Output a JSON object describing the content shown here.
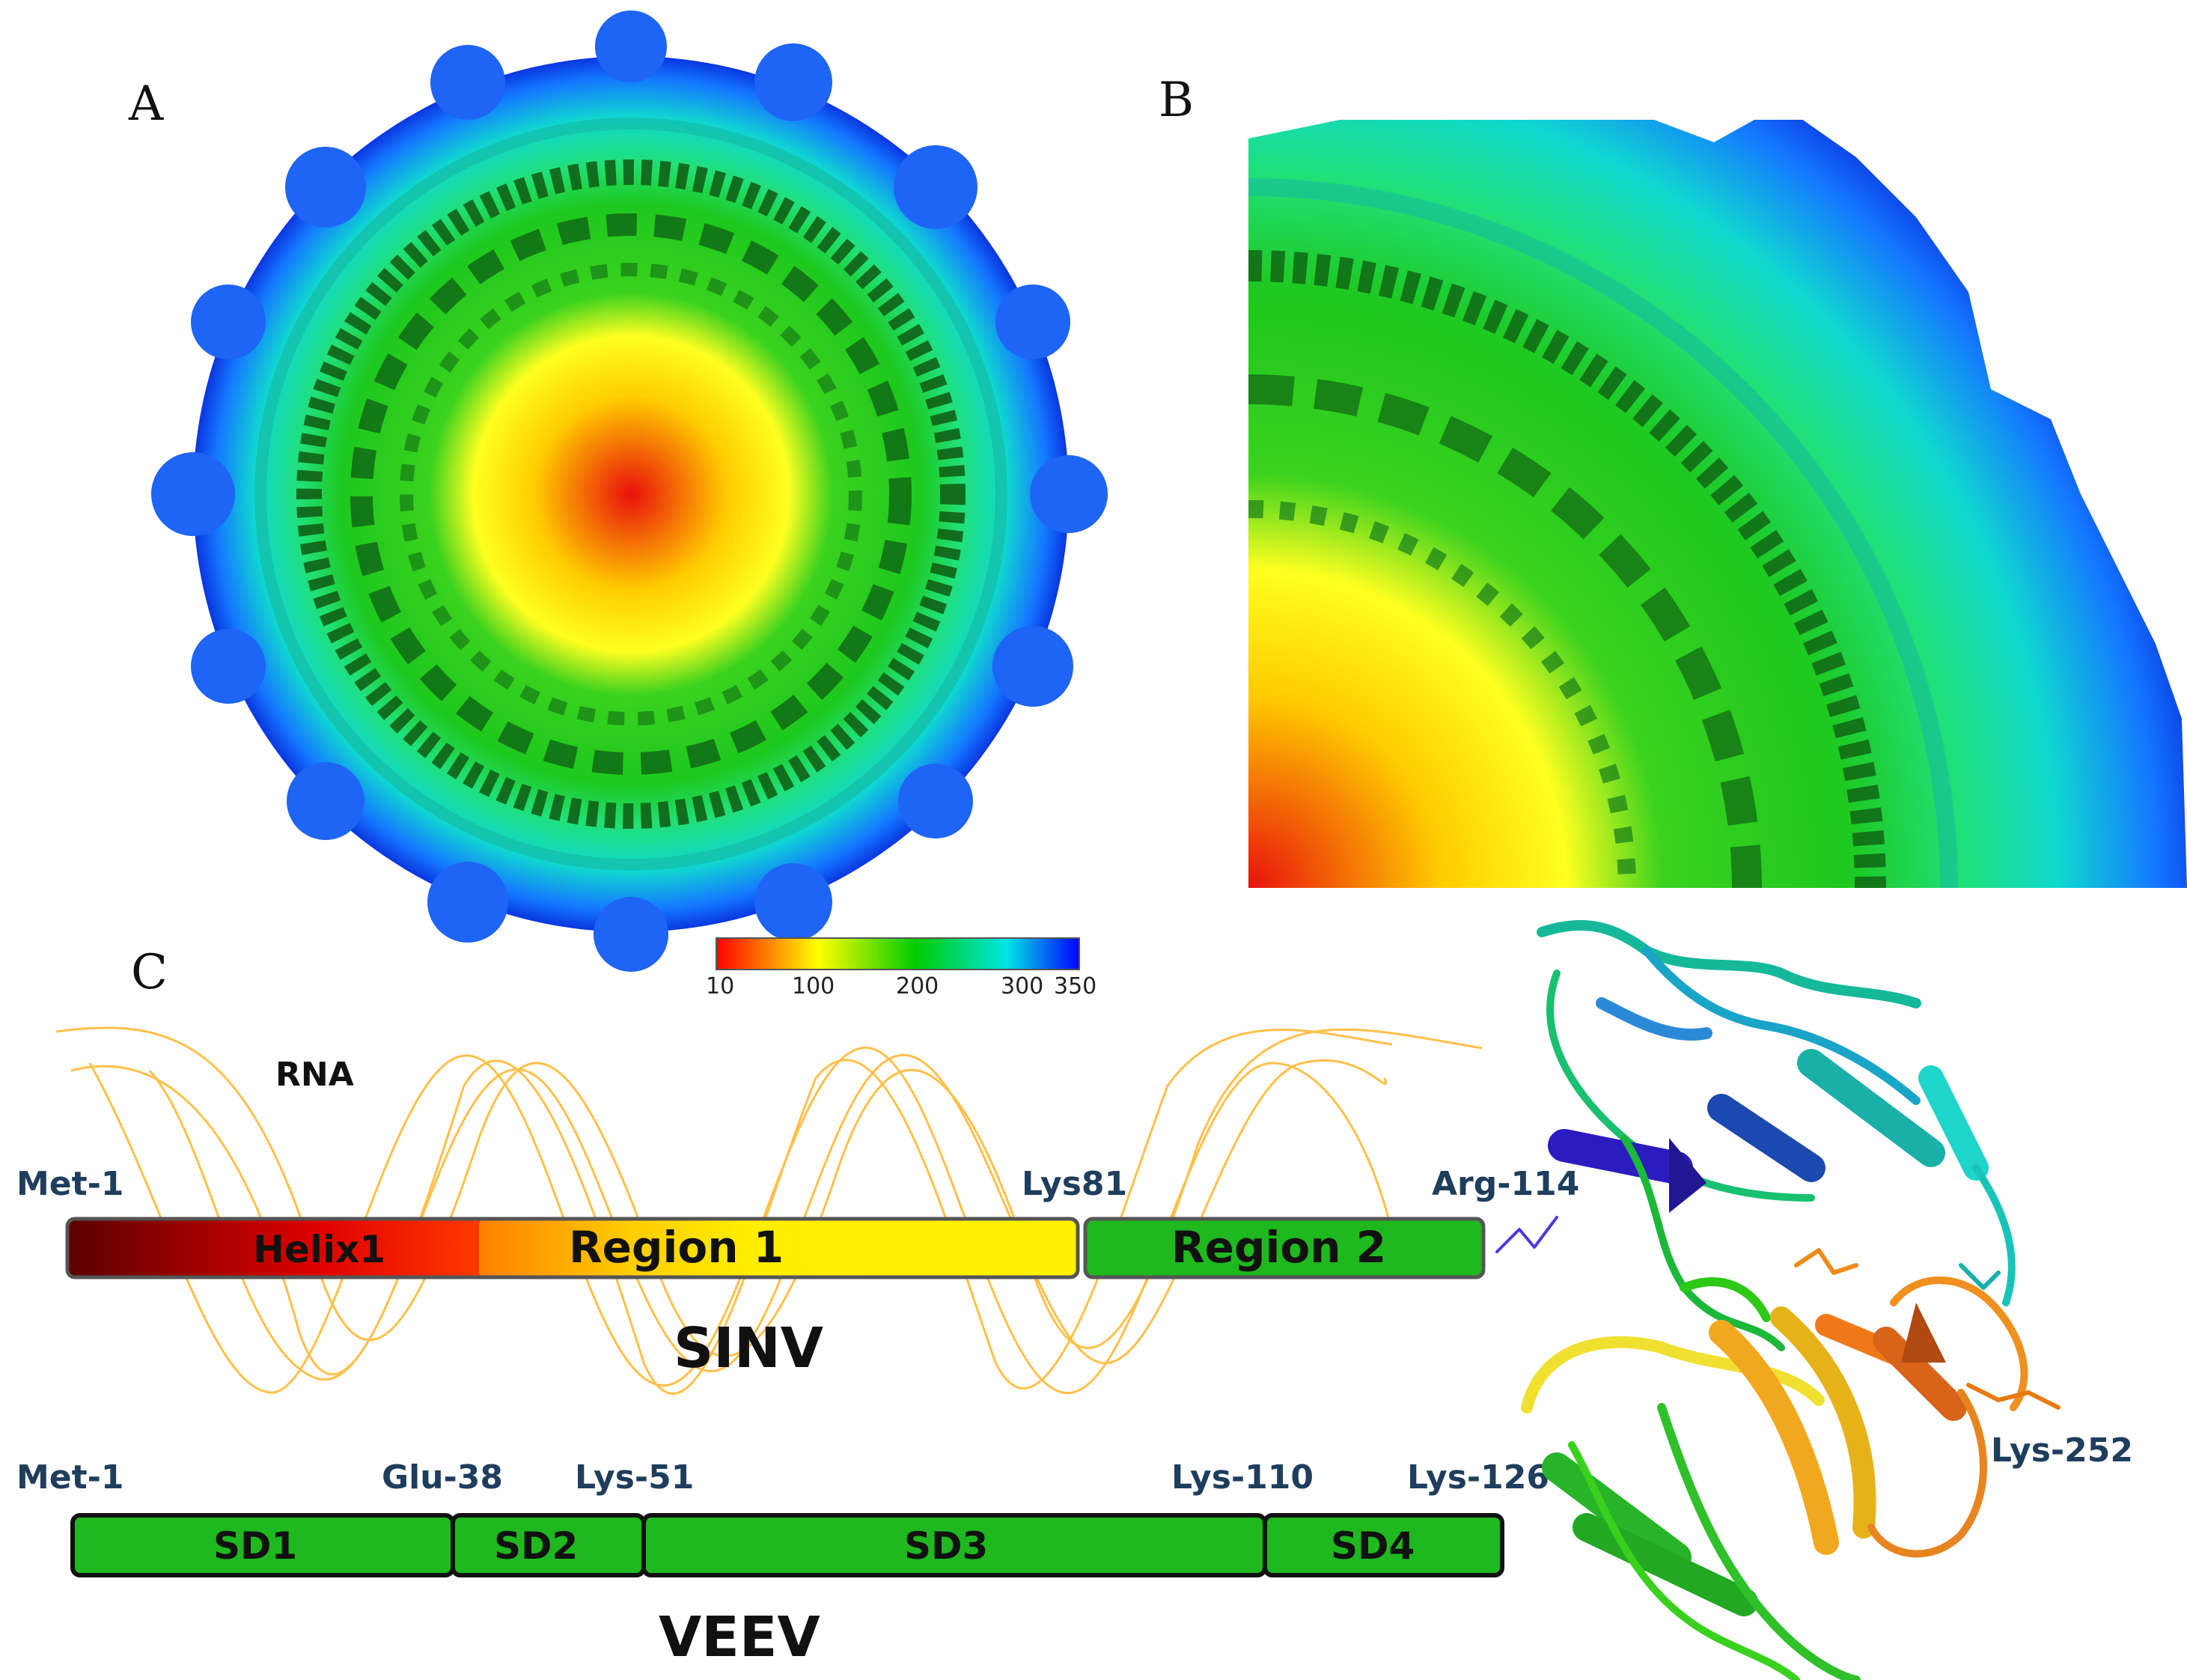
{
  "panels": {
    "a_label": "A",
    "b_label": "B",
    "c_label": "C"
  },
  "colorbar": {
    "ticks": [
      "10",
      "100",
      "200",
      "300",
      "350"
    ],
    "colors": [
      "#ff0000",
      "#ffff00",
      "#00cc00",
      "#00e5e5",
      "#0000ff"
    ]
  },
  "rna": {
    "label": "RNA",
    "color": "#ffc04a"
  },
  "sinv": {
    "name": "SINV",
    "residues": [
      "Met-1",
      "Lys81",
      "Arg-114"
    ],
    "segments": [
      {
        "label": "Helix1"
      },
      {
        "label": "Region 1"
      },
      {
        "label": "Region 2"
      }
    ],
    "colors": {
      "helix_start": "#5a0000",
      "helix_end": "#ff2a00",
      "region1": "#ffee00",
      "region2": "#1fb81f"
    }
  },
  "veev": {
    "name": "VEEV",
    "residues": [
      "Met-1",
      "Glu-38",
      "Lys-51",
      "Lys-110",
      "Lys-126"
    ],
    "segments": [
      {
        "label": "SD1"
      },
      {
        "label": "SD2"
      },
      {
        "label": "SD3"
      },
      {
        "label": "SD4"
      }
    ],
    "color": "#1fb81f"
  },
  "structure": {
    "residue_label": "Lys-252"
  }
}
